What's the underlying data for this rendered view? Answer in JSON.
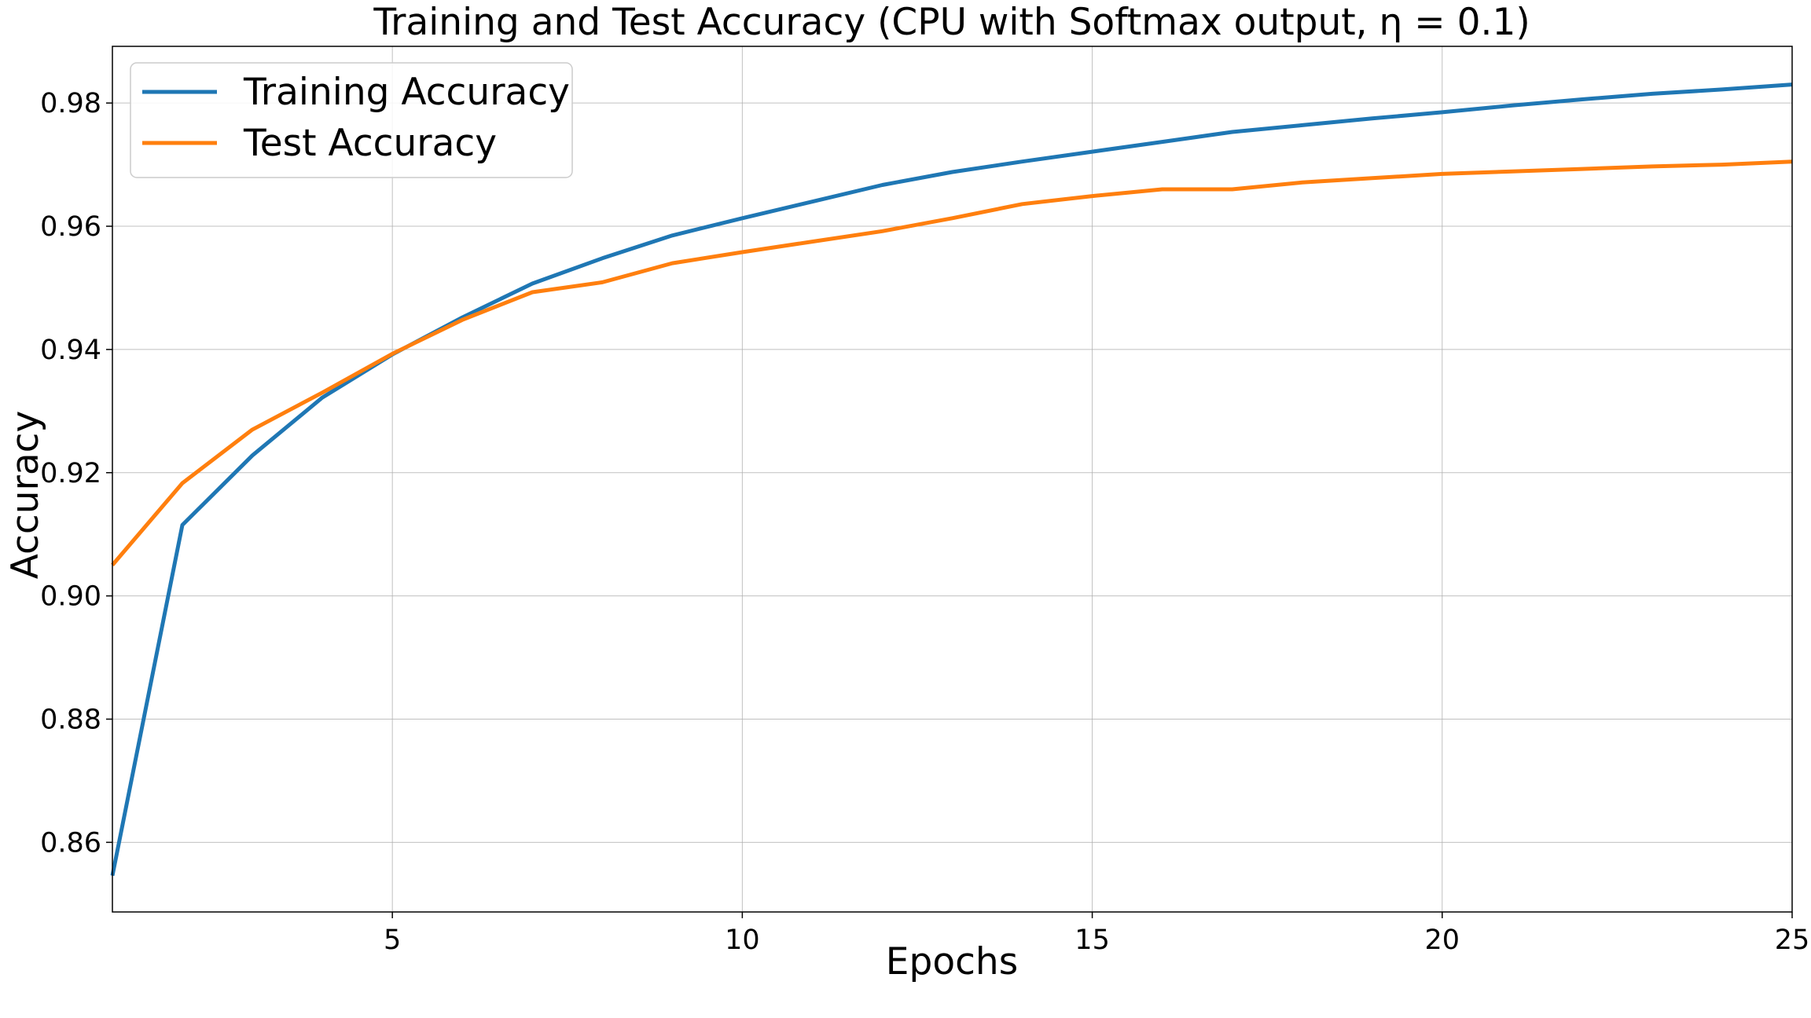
{
  "chart_data": {
    "type": "line",
    "title": "Training and Test Accuracy (CPU with Softmax output, η = 0.1)",
    "xlabel": "Epochs",
    "ylabel": "Accuracy",
    "xlim": [
      1,
      25
    ],
    "ylim": [
      0.8487,
      0.9892
    ],
    "xticks": [
      5,
      10,
      15,
      20,
      25
    ],
    "xtick_labels": [
      "5",
      "10",
      "15",
      "20",
      "25"
    ],
    "yticks": [
      0.86,
      0.88,
      0.9,
      0.92,
      0.94,
      0.96,
      0.98
    ],
    "ytick_labels": [
      "0.86",
      "0.88",
      "0.90",
      "0.92",
      "0.94",
      "0.96",
      "0.98"
    ],
    "grid": true,
    "legend_position": "top-left",
    "x": [
      1,
      2,
      3,
      4,
      5,
      6,
      7,
      8,
      9,
      10,
      11,
      12,
      13,
      14,
      15,
      16,
      17,
      18,
      19,
      20,
      21,
      22,
      23,
      24,
      25
    ],
    "series": [
      {
        "name": "Training Accuracy",
        "color": "#1f77b4",
        "values": [
          0.8546,
          0.9115,
          0.9228,
          0.9322,
          0.9392,
          0.9452,
          0.9507,
          0.9548,
          0.9585,
          0.9613,
          0.964,
          0.9667,
          0.9688,
          0.9705,
          0.9721,
          0.9737,
          0.9753,
          0.9764,
          0.9775,
          0.9785,
          0.9796,
          0.9806,
          0.9815,
          0.9822,
          0.983
        ]
      },
      {
        "name": "Test Accuracy",
        "color": "#ff7f0e",
        "values": [
          0.905,
          0.9183,
          0.927,
          0.933,
          0.9393,
          0.9448,
          0.9493,
          0.9509,
          0.954,
          0.9558,
          0.9575,
          0.9592,
          0.9613,
          0.9636,
          0.9649,
          0.966,
          0.966,
          0.9671,
          0.9678,
          0.9685,
          0.9689,
          0.9693,
          0.9697,
          0.97,
          0.9705
        ]
      }
    ]
  }
}
